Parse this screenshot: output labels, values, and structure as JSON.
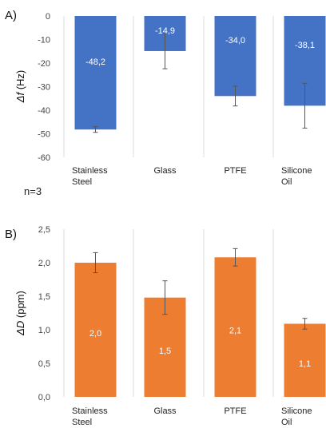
{
  "chart_data": [
    {
      "type": "bar",
      "panel_label": "A)",
      "ylabel_symbol": "Δf",
      "ylabel_unit": "(Hz)",
      "ylim": [
        -60,
        0
      ],
      "yticks": [
        "0",
        "-10",
        "-20",
        "-30",
        "-40",
        "-50",
        "-60"
      ],
      "categories": [
        [
          "Stainless",
          "Steel"
        ],
        [
          "Glass"
        ],
        [
          "PTFE"
        ],
        [
          "Silicone",
          "Oil"
        ]
      ],
      "values": [
        -48.2,
        -14.9,
        -34.0,
        -38.1
      ],
      "value_labels": [
        "-48,2",
        "-14,9",
        "-34,0",
        "-38,1"
      ],
      "errors": [
        1.2,
        7.5,
        4.2,
        9.5
      ],
      "color": "#4472C4",
      "note": "n=3"
    },
    {
      "type": "bar",
      "panel_label": "B)",
      "ylabel_symbol": "ΔD",
      "ylabel_unit": "(ppm)",
      "ylim": [
        0,
        2.5
      ],
      "yticks": [
        "2,5",
        "2,0",
        "1,5",
        "1,0",
        "0,5",
        "0,0"
      ],
      "categories": [
        [
          "Stainless",
          "Steel"
        ],
        [
          "Glass"
        ],
        [
          "PTFE"
        ],
        [
          "Silicone",
          "Oil"
        ]
      ],
      "values": [
        2.0,
        1.48,
        2.08,
        1.09
      ],
      "value_labels": [
        "2,0",
        "1,5",
        "2,1",
        "1,1"
      ],
      "errors": [
        0.15,
        0.25,
        0.13,
        0.08
      ],
      "color": "#ED7D31"
    }
  ]
}
